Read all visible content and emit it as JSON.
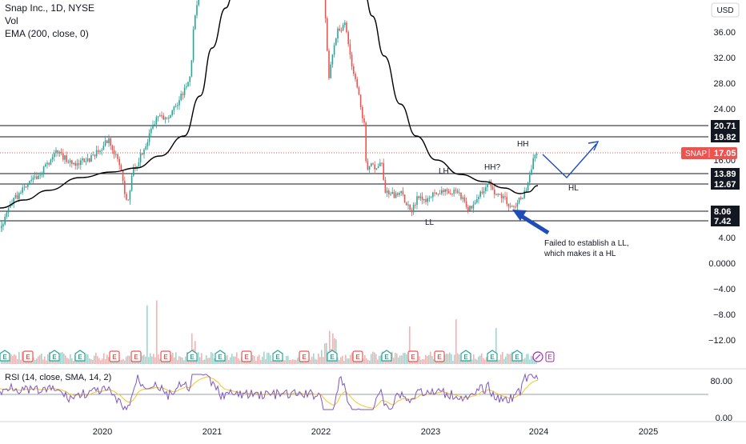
{
  "legend": {
    "title": "Snap Inc., 1D, NYSE",
    "vol": "Vol",
    "ema": "EMA (200, close, 0)"
  },
  "currency": "USD",
  "rsi_label": "RSI (14, close, SMA, 14, 2)",
  "colors": {
    "up": "#26a69a",
    "down": "#ef5350",
    "ema": "#000000",
    "rsi": "#7e57c2",
    "rsi_ma": "#f7c325",
    "annot": "#1e4db7",
    "earnings": "#26a69a",
    "earnings_red": "#ef5350"
  },
  "chart_data": [
    {
      "type": "line",
      "title": "Snap Inc., 1D, NYSE",
      "ylabel": "USD",
      "y_ticks": [
        "36.00",
        "32.00",
        "28.00",
        "24.00",
        "16.00",
        "4.00",
        "0.0000",
        "−4.00",
        "−8.00",
        "−12.00"
      ],
      "x_ticks": [
        "2020",
        "2021",
        "2022",
        "2023",
        "2024",
        "2025"
      ],
      "price_marker": {
        "label": "SNAP",
        "value": "17.05"
      },
      "levels": [
        "20.71",
        "19.82",
        "13.89",
        "12.67",
        "8.06",
        "7.42"
      ],
      "annotations": [
        "HH",
        "HH?",
        "LH",
        "LL",
        "HL"
      ],
      "note": "Failed to establish a LL, which makes it a HL",
      "series": [
        {
          "name": "Vol"
        },
        {
          "name": "EMA (200, close, 0)"
        }
      ]
    },
    {
      "type": "line",
      "title": "RSI (14, close, SMA, 14, 2)",
      "y_ticks": [
        "80.00",
        "0.00"
      ],
      "x_ticks": [
        "2020",
        "2021",
        "2022",
        "2023",
        "2024",
        "2025"
      ]
    }
  ]
}
